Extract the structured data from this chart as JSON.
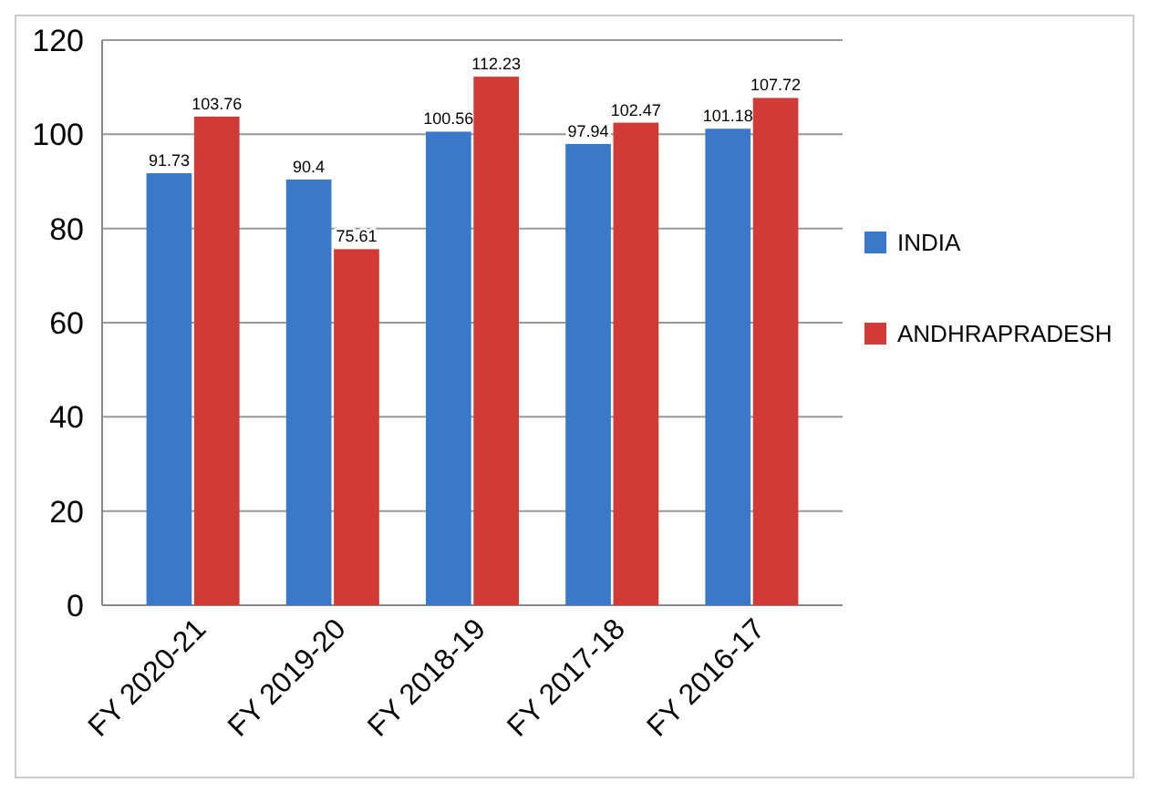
{
  "chart_data": {
    "type": "bar",
    "categories": [
      "FY 2020-21",
      "FY 2019-20",
      "FY 2018-19",
      "FY 2017-18",
      "FY 2016-17"
    ],
    "series": [
      {
        "name": "INDIA",
        "color": "#3a78c9",
        "values": [
          91.73,
          90.4,
          100.56,
          97.94,
          101.18
        ]
      },
      {
        "name": "ANDHRAPRADESH",
        "color": "#d23a36",
        "values": [
          103.76,
          75.61,
          112.23,
          102.47,
          107.72
        ]
      }
    ],
    "ylim": [
      0,
      120
    ],
    "yticks": [
      0,
      20,
      40,
      60,
      80,
      100,
      120
    ],
    "grid": "y",
    "legend": "right",
    "data_labels": true
  }
}
